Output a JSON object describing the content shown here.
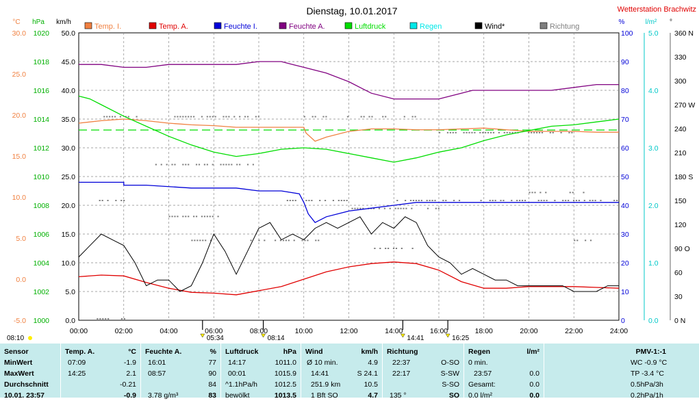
{
  "title": "Dienstag, 10.01.2017",
  "station": "Wetterstation Brachwitz",
  "colors": {
    "temp_i": "#f08040",
    "temp_a": "#e00000",
    "feuchte_i": "#0000d8",
    "feuchte_a": "#800080",
    "luftdruck": "#00dd00",
    "regen": "#00e8e8",
    "wind": "#000000",
    "richtung": "#808080",
    "table_bg": "#c6ebec"
  },
  "chart_data": {
    "type": "line",
    "legend": [
      {
        "name": "Temp. I.",
        "color": "#f08040"
      },
      {
        "name": "Temp. A.",
        "color": "#e00000"
      },
      {
        "name": "Feuchte I.",
        "color": "#0000d8"
      },
      {
        "name": "Feuchte A.",
        "color": "#800080"
      },
      {
        "name": "Luftdruck",
        "color": "#00dd00"
      },
      {
        "name": "Regen",
        "color": "#00e8e8"
      },
      {
        "name": "Wind*",
        "color": "#000000"
      },
      {
        "name": "Richtung",
        "color": "#808080"
      }
    ],
    "axes": {
      "temp": {
        "unit": "°C",
        "range": [
          -5,
          30
        ],
        "ticks": [
          "30.0",
          "25.0",
          "20.0",
          "15.0",
          "10.0",
          "5.0",
          "0.0",
          "-5.0"
        ]
      },
      "pressure": {
        "unit": "hPa",
        "range": [
          1000,
          1020
        ],
        "ticks": [
          "1020",
          "1018",
          "1016",
          "1014",
          "1012",
          "1010",
          "1008",
          "1006",
          "1004",
          "1002",
          "1000"
        ]
      },
      "wind": {
        "unit": "km/h",
        "range": [
          0,
          50
        ],
        "ticks": [
          "50.0",
          "45.0",
          "40.0",
          "35.0",
          "30.0",
          "25.0",
          "20.0",
          "15.0",
          "10.0",
          "5.0",
          "0.0"
        ]
      },
      "humidity": {
        "unit": "%",
        "range": [
          0,
          100
        ],
        "ticks": [
          "100",
          "90",
          "80",
          "70",
          "60",
          "50",
          "40",
          "30",
          "20",
          "10",
          "0"
        ]
      },
      "rain": {
        "unit": "l/m²",
        "range": [
          0,
          5
        ],
        "ticks": [
          "5.0",
          "4.0",
          "3.0",
          "2.0",
          "1.0",
          "0.0"
        ]
      },
      "direction": {
        "unit": "°",
        "range": [
          0,
          360
        ],
        "ticks": [
          "360 N",
          "330",
          "300",
          "270 W",
          "240",
          "210",
          "180 S",
          "150",
          "120",
          "90 O",
          "60",
          "30",
          "0 N"
        ]
      },
      "x": {
        "range": [
          0,
          24
        ],
        "ticks": [
          "00:00",
          "02:00",
          "04:00",
          "06:00",
          "08:00",
          "10:00",
          "12:00",
          "14:00",
          "16:00",
          "18:00",
          "20:00",
          "22:00",
          "24:00"
        ]
      }
    },
    "series": [
      {
        "key": "temp_a",
        "name": "Temp. A.",
        "axis": "temp",
        "color": "#e00000",
        "x": [
          0,
          1,
          2,
          3,
          4,
          5,
          6,
          7,
          8,
          9,
          10,
          11,
          12,
          13,
          14,
          15,
          16,
          17,
          18,
          19,
          20,
          21,
          22,
          23,
          24
        ],
        "y": [
          0.3,
          0.5,
          0.4,
          -0.4,
          -1.1,
          -1.6,
          -1.7,
          -1.9,
          -1.4,
          -0.9,
          0,
          0.9,
          1.5,
          1.9,
          2.1,
          1.9,
          1.1,
          -0.3,
          -1.1,
          -1.1,
          -0.9,
          -0.9,
          -0.9,
          -1.0,
          -1.1
        ]
      },
      {
        "key": "temp_i",
        "name": "Temp. I.",
        "axis": "temp",
        "color": "#f08040",
        "x": [
          0,
          1,
          2,
          3,
          4,
          5,
          6,
          7,
          8,
          9,
          10,
          10.1,
          10.5,
          11,
          12,
          13,
          14,
          15,
          16,
          17,
          18,
          19,
          20,
          21,
          22,
          23,
          24
        ],
        "y": [
          19.0,
          19.3,
          19.5,
          19.3,
          19.0,
          18.8,
          18.7,
          18.5,
          18.5,
          18.5,
          18.5,
          17.8,
          16.8,
          17.3,
          18.0,
          18.3,
          18.3,
          18.2,
          18.2,
          18.3,
          18.4,
          18.2,
          18.0,
          18.0,
          18.0,
          17.9,
          17.9
        ]
      },
      {
        "key": "feuchte_a",
        "name": "Feuchte A.",
        "axis": "humidity",
        "color": "#800080",
        "x": [
          0,
          1,
          2,
          3,
          4,
          5,
          6,
          7,
          8,
          9,
          9.5,
          10,
          11,
          12,
          12.5,
          13,
          14,
          15,
          16,
          17,
          17.5,
          18,
          19,
          20,
          21,
          22,
          23,
          24
        ],
        "y": [
          89,
          89,
          88,
          88,
          89,
          89,
          89,
          89,
          90,
          90,
          89,
          88,
          86,
          83,
          81,
          79,
          77,
          77,
          77,
          79,
          80,
          80,
          80,
          80,
          80,
          81,
          82,
          82
        ]
      },
      {
        "key": "feuchte_i",
        "name": "Feuchte I.",
        "axis": "humidity",
        "color": "#0000d8",
        "x": [
          0,
          1,
          2,
          2,
          3,
          5,
          6,
          7,
          8,
          9,
          9.8,
          10.0,
          10.2,
          10.5,
          11,
          12,
          13,
          14,
          15,
          16,
          18,
          20,
          22,
          24
        ],
        "y": [
          48,
          48,
          48,
          47,
          47,
          46,
          46,
          46,
          45,
          45,
          44,
          41,
          37,
          34,
          36,
          38,
          39,
          40,
          41,
          41,
          41,
          41,
          41,
          41
        ]
      },
      {
        "key": "luftdruck",
        "name": "Luftdruck",
        "axis": "pressure",
        "color": "#00dd00",
        "x": [
          0,
          0.5,
          1,
          2,
          3,
          4,
          5,
          6,
          7,
          8,
          9,
          10,
          11,
          12,
          13,
          14,
          15,
          16,
          17,
          18,
          19,
          20,
          21,
          22,
          23,
          24
        ],
        "y": [
          1015.6,
          1015.4,
          1015.0,
          1014.2,
          1013.5,
          1012.8,
          1012.2,
          1011.7,
          1011.4,
          1011.6,
          1011.9,
          1012.0,
          1011.9,
          1011.6,
          1011.3,
          1011.0,
          1011.3,
          1011.7,
          1012.0,
          1012.5,
          1012.9,
          1013.2,
          1013.5,
          1013.6,
          1013.8,
          1014.0
        ]
      },
      {
        "key": "wind",
        "name": "Wind*",
        "axis": "wind",
        "color": "#000000",
        "x": [
          0,
          0.5,
          1,
          1.5,
          2,
          2.5,
          3,
          3.5,
          4,
          4.5,
          5,
          5.5,
          6,
          6.5,
          7,
          7.5,
          8,
          8.5,
          9,
          9.5,
          10,
          10.5,
          11,
          11.5,
          12,
          12.5,
          13,
          13.5,
          14,
          14.5,
          15,
          15.5,
          16,
          16.5,
          17,
          17.5,
          18,
          18.5,
          19,
          19.5,
          20,
          20.5,
          21,
          21.5,
          22,
          22.5,
          23,
          23.5,
          24
        ],
        "y": [
          11,
          13,
          15,
          14,
          13,
          10,
          6,
          7,
          7,
          5,
          6,
          10,
          15,
          12,
          8,
          12,
          16,
          17,
          14,
          15,
          14,
          16,
          17,
          16,
          17,
          18,
          15,
          17,
          16,
          18,
          17,
          13,
          11,
          10,
          8,
          9,
          8,
          7,
          7,
          6,
          6,
          6,
          6,
          6,
          5,
          5,
          5,
          6,
          6
        ]
      }
    ],
    "markers": {
      "gusts": [
        {
          "x": 5.5,
          "label": "05:34"
        },
        {
          "x": 8.2,
          "label": "08:14"
        },
        {
          "x": 14.4,
          "label": "14:41"
        },
        {
          "x": 16.4,
          "label": "16:25"
        }
      ],
      "sun": {
        "rise": "08:10",
        "set": "16:25"
      }
    }
  },
  "table": {
    "sensor": {
      "header": "Sensor",
      "min": "MinWert",
      "max": "MaxWert",
      "avg": "Durchschnitt",
      "now": "10.01. 23:57"
    },
    "temp_a": {
      "header": "Temp. A.",
      "unit": "°C",
      "min_time": "07:09",
      "min": "-1.9",
      "max_time": "14:25",
      "max": "2.1",
      "avg": "-0.21",
      "now": "-0.9"
    },
    "feuchte_a": {
      "header": "Feuchte A.",
      "unit": "%",
      "min_time": "16:01",
      "min": "77",
      "max_time": "08:57",
      "max": "90",
      "avg": "84",
      "now_extra": "3.78 g/m³",
      "now": "83"
    },
    "luftdruck": {
      "header": "Luftdruck",
      "unit": "hPa",
      "min_time": "14:17",
      "min": "1011.0",
      "max_time": "00:01",
      "max": "1015.9",
      "avg_label": "^1.1hPa/h",
      "avg": "1012.5",
      "now_label": "bewölkt",
      "now": "1013.5"
    },
    "wind": {
      "header": "Wind",
      "unit": "km/h",
      "min_label": "Ø 10 min.",
      "min": "4.9",
      "max_time": "14:41",
      "max": "S 24.1",
      "avg_label": "251.9 km",
      "avg": "10.5",
      "now_label": "1 Bft SO",
      "now": "4.7"
    },
    "richtung": {
      "header": "Richtung",
      "min_time": "22:37",
      "min": "O-SO",
      "max_time": "22:17",
      "max": "S-SW",
      "avg": "S-SO",
      "now_label": "135 °",
      "now": "SO"
    },
    "regen": {
      "header": "Regen",
      "unit": "l/m²",
      "min_label": "0 min.",
      "max_time": "23:57",
      "max": "0.0",
      "avg_label": "Gesamt:",
      "avg": "0.0",
      "now_label": "0.0 l/m²",
      "now": "0.0"
    },
    "pmv": {
      "header": "PMV-1:-1",
      "wc": "WC -0.9 °C",
      "tp": "TP -3.4 °C",
      "r3": "0.5hPa/3h",
      "r1": "0.2hPa/1h"
    }
  }
}
